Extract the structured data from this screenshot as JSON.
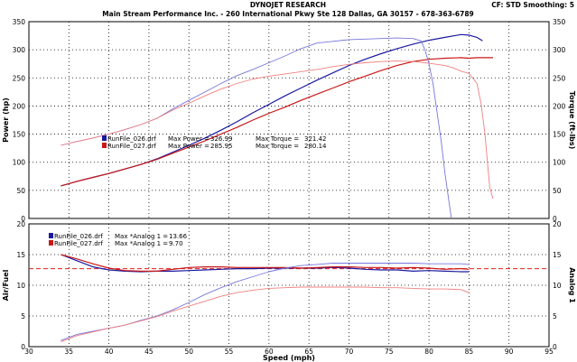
{
  "header": {
    "title": "DYNOJET RESEARCH",
    "address": "Main Stream Performance Inc. - 260 International Pkwy Ste 128  Dallas, GA  30157 - 678-363-6789",
    "settings": "CF: STD  Smoothing: 5"
  },
  "colors": {
    "run026": "#1a1aa0",
    "run026_light": "#7777dd",
    "run027": "#c81818",
    "run027_light": "#f08080",
    "afr_ref": "#e02020"
  },
  "chart_data": [
    {
      "type": "line",
      "title": "",
      "xlabel": "",
      "ylabel": "Power (hp)",
      "ylabel_right": "Torque (ft-lbs)",
      "xlim": [
        30,
        95
      ],
      "ylim": [
        0,
        350
      ],
      "x_ticks": [
        30,
        35,
        40,
        45,
        50,
        55,
        60,
        65,
        70,
        75,
        80,
        85,
        90,
        95
      ],
      "y_ticks": [
        0,
        50,
        100,
        150,
        200,
        250,
        300,
        350
      ],
      "grid": true,
      "legend_position": "center-left",
      "legend": [
        {
          "run": "RunFile_026.drf",
          "max_power_label": "Max Power =",
          "max_power": "326.99",
          "max_torque_label": "Max Torque =",
          "max_torque": "321.42"
        },
        {
          "run": "RunFile_027.drf",
          "max_power_label": "Max Power =",
          "max_power": "285.95",
          "max_torque_label": "Max Torque =",
          "max_torque": "280.14"
        }
      ],
      "series": [
        {
          "name": "RunFile_026.drf Power",
          "color": "#1a1aa0",
          "width": 1.2,
          "points": [
            [
              34,
              58
            ],
            [
              36,
              66
            ],
            [
              38,
              73
            ],
            [
              40,
              80
            ],
            [
              42,
              88
            ],
            [
              44,
              96
            ],
            [
              46,
              106
            ],
            [
              48,
              118
            ],
            [
              50,
              130
            ],
            [
              52,
              143
            ],
            [
              54,
              157
            ],
            [
              56,
              172
            ],
            [
              58,
              188
            ],
            [
              60,
              203
            ],
            [
              62,
              218
            ],
            [
              64,
              232
            ],
            [
              66,
              246
            ],
            [
              68,
              259
            ],
            [
              70,
              272
            ],
            [
              72,
              283
            ],
            [
              74,
              293
            ],
            [
              76,
              302
            ],
            [
              78,
              310
            ],
            [
              80,
              317
            ],
            [
              82,
              322
            ],
            [
              84,
              327
            ],
            [
              85,
              326
            ],
            [
              86,
              322
            ],
            [
              86.7,
              316
            ]
          ]
        },
        {
          "name": "RunFile_027.drf Power",
          "color": "#c81818",
          "width": 1.2,
          "points": [
            [
              34,
              58
            ],
            [
              36,
              66
            ],
            [
              38,
              73
            ],
            [
              40,
              80
            ],
            [
              42,
              88
            ],
            [
              44,
              96
            ],
            [
              46,
              105
            ],
            [
              48,
              116
            ],
            [
              50,
              127
            ],
            [
              52,
              138
            ],
            [
              54,
              150
            ],
            [
              56,
              162
            ],
            [
              58,
              175
            ],
            [
              60,
              187
            ],
            [
              62,
              198
            ],
            [
              64,
              210
            ],
            [
              66,
              221
            ],
            [
              68,
              232
            ],
            [
              70,
              243
            ],
            [
              72,
              253
            ],
            [
              74,
              263
            ],
            [
              76,
              272
            ],
            [
              78,
              279
            ],
            [
              80,
              283
            ],
            [
              82,
              285
            ],
            [
              84,
              286
            ],
            [
              85,
              285
            ],
            [
              86,
              286
            ],
            [
              88,
              286
            ]
          ]
        },
        {
          "name": "RunFile_026.drf Torque",
          "color": "#7777dd",
          "width": 0.9,
          "points": [
            [
              34,
              130
            ],
            [
              36,
              137
            ],
            [
              38,
              143
            ],
            [
              40,
              150
            ],
            [
              42,
              158
            ],
            [
              44,
              167
            ],
            [
              46,
              178
            ],
            [
              48,
              195
            ],
            [
              50,
              210
            ],
            [
              52,
              225
            ],
            [
              54,
              240
            ],
            [
              56,
              254
            ],
            [
              58,
              265
            ],
            [
              60,
              277
            ],
            [
              62,
              289
            ],
            [
              64,
              302
            ],
            [
              66,
              312
            ],
            [
              68,
              315
            ],
            [
              70,
              318
            ],
            [
              72,
              319
            ],
            [
              74,
              320
            ],
            [
              76,
              321
            ],
            [
              78,
              320
            ],
            [
              79,
              316
            ],
            [
              79.5,
              300
            ],
            [
              80,
              275
            ],
            [
              80.5,
              240
            ],
            [
              81,
              190
            ],
            [
              81.5,
              140
            ],
            [
              82,
              80
            ],
            [
              82.5,
              30
            ],
            [
              82.8,
              0
            ]
          ]
        },
        {
          "name": "RunFile_027.drf Torque",
          "color": "#f08080",
          "width": 0.9,
          "points": [
            [
              34,
              130
            ],
            [
              36,
              137
            ],
            [
              38,
              143
            ],
            [
              40,
              150
            ],
            [
              42,
              158
            ],
            [
              44,
              167
            ],
            [
              46,
              178
            ],
            [
              48,
              193
            ],
            [
              50,
              205
            ],
            [
              52,
              218
            ],
            [
              54,
              230
            ],
            [
              56,
              240
            ],
            [
              58,
              248
            ],
            [
              60,
              253
            ],
            [
              62,
              257
            ],
            [
              64,
              261
            ],
            [
              66,
              265
            ],
            [
              68,
              270
            ],
            [
              70,
              274
            ],
            [
              72,
              277
            ],
            [
              74,
              279
            ],
            [
              76,
              280
            ],
            [
              78,
              279
            ],
            [
              80,
              276
            ],
            [
              82,
              272
            ],
            [
              83,
              268
            ],
            [
              84,
              262
            ],
            [
              85,
              258
            ],
            [
              86,
              240
            ],
            [
              86.5,
              205
            ],
            [
              87,
              150
            ],
            [
              87.3,
              100
            ],
            [
              87.6,
              55
            ],
            [
              88,
              35
            ]
          ]
        }
      ]
    },
    {
      "type": "line",
      "title": "",
      "xlabel": "Speed (mph)",
      "ylabel": "Air/Fuel",
      "ylabel_right": "Analog 1",
      "xlim": [
        30,
        95
      ],
      "ylim": [
        0,
        20
      ],
      "x_ticks": [
        30,
        35,
        40,
        45,
        50,
        55,
        60,
        65,
        70,
        75,
        80,
        85,
        90,
        95
      ],
      "y_ticks": [
        0,
        5,
        10,
        15,
        20
      ],
      "grid": true,
      "legend_position": "top-left",
      "reference_line": 12.7,
      "legend": [
        {
          "run": "RunFile_026.drf",
          "label": "Max *Analog 1 =",
          "value": "13.66"
        },
        {
          "run": "RunFile_027.drf",
          "label": "Max *Analog 1 =",
          "value": "9.70"
        }
      ],
      "series": [
        {
          "name": "RunFile_026.drf AFR",
          "color": "#1a1aa0",
          "width": 1.2,
          "points": [
            [
              34,
              15
            ],
            [
              36,
              14
            ],
            [
              38,
              13
            ],
            [
              40,
              12.5
            ],
            [
              42,
              12.3
            ],
            [
              44,
              12.2
            ],
            [
              46,
              12.3
            ],
            [
              48,
              12.3
            ],
            [
              50,
              12.4
            ],
            [
              52,
              12.5
            ],
            [
              54,
              12.6
            ],
            [
              56,
              12.7
            ],
            [
              58,
              12.7
            ],
            [
              60,
              12.8
            ],
            [
              62,
              12.8
            ],
            [
              64,
              12.8
            ],
            [
              66,
              12.8
            ],
            [
              68,
              12.9
            ],
            [
              70,
              12.8
            ],
            [
              72,
              12.6
            ],
            [
              74,
              12.5
            ],
            [
              76,
              12.5
            ],
            [
              78,
              12.3
            ],
            [
              80,
              12.4
            ],
            [
              82,
              12.3
            ],
            [
              84,
              12.2
            ],
            [
              85,
              12.2
            ]
          ]
        },
        {
          "name": "RunFile_027.drf AFR",
          "color": "#c81818",
          "width": 1.2,
          "points": [
            [
              34,
              15
            ],
            [
              36,
              14.3
            ],
            [
              38,
              13.5
            ],
            [
              40,
              12.8
            ],
            [
              42,
              12.4
            ],
            [
              44,
              12.3
            ],
            [
              46,
              12.3
            ],
            [
              48,
              12.6
            ],
            [
              50,
              12.9
            ],
            [
              52,
              13
            ],
            [
              54,
              13
            ],
            [
              56,
              12.9
            ],
            [
              58,
              12.9
            ],
            [
              60,
              12.9
            ],
            [
              62,
              12.9
            ],
            [
              64,
              12.8
            ],
            [
              66,
              12.9
            ],
            [
              68,
              13
            ],
            [
              70,
              13
            ],
            [
              72,
              12.9
            ],
            [
              74,
              12.9
            ],
            [
              76,
              12.8
            ],
            [
              78,
              12.9
            ],
            [
              80,
              12.8
            ],
            [
              82,
              12.6
            ],
            [
              84,
              12.7
            ],
            [
              85,
              12.6
            ]
          ]
        },
        {
          "name": "RunFile_026.drf Analog 1",
          "color": "#7777dd",
          "width": 0.9,
          "points": [
            [
              34,
              1
            ],
            [
              36,
              2
            ],
            [
              38,
              2.5
            ],
            [
              40,
              3
            ],
            [
              42,
              3.5
            ],
            [
              44,
              4.3
            ],
            [
              46,
              5
            ],
            [
              48,
              6
            ],
            [
              50,
              7.2
            ],
            [
              52,
              8.5
            ],
            [
              54,
              9.6
            ],
            [
              56,
              10.6
            ],
            [
              58,
              11.4
            ],
            [
              60,
              12.2
            ],
            [
              62,
              12.8
            ],
            [
              64,
              13.2
            ],
            [
              66,
              13.4
            ],
            [
              68,
              13.6
            ],
            [
              70,
              13.6
            ],
            [
              72,
              13.6
            ],
            [
              74,
              13.6
            ],
            [
              76,
              13.6
            ],
            [
              78,
              13.6
            ],
            [
              80,
              13.5
            ],
            [
              82,
              13.5
            ],
            [
              84,
              13.5
            ],
            [
              85,
              13.4
            ]
          ]
        },
        {
          "name": "RunFile_027.drf Analog 1",
          "color": "#f08080",
          "width": 0.9,
          "points": [
            [
              34,
              0.8
            ],
            [
              36,
              1.8
            ],
            [
              38,
              2.4
            ],
            [
              40,
              3
            ],
            [
              42,
              3.5
            ],
            [
              44,
              4.2
            ],
            [
              46,
              4.9
            ],
            [
              48,
              5.8
            ],
            [
              50,
              6.6
            ],
            [
              52,
              7.4
            ],
            [
              54,
              8.2
            ],
            [
              56,
              8.8
            ],
            [
              58,
              9.2
            ],
            [
              60,
              9.5
            ],
            [
              62,
              9.6
            ],
            [
              64,
              9.7
            ],
            [
              66,
              9.7
            ],
            [
              68,
              9.7
            ],
            [
              70,
              9.7
            ],
            [
              72,
              9.7
            ],
            [
              74,
              9.6
            ],
            [
              76,
              9.6
            ],
            [
              78,
              9.5
            ],
            [
              80,
              9.4
            ],
            [
              82,
              9.4
            ],
            [
              84,
              9.3
            ],
            [
              85,
              8.8
            ]
          ]
        }
      ]
    }
  ]
}
